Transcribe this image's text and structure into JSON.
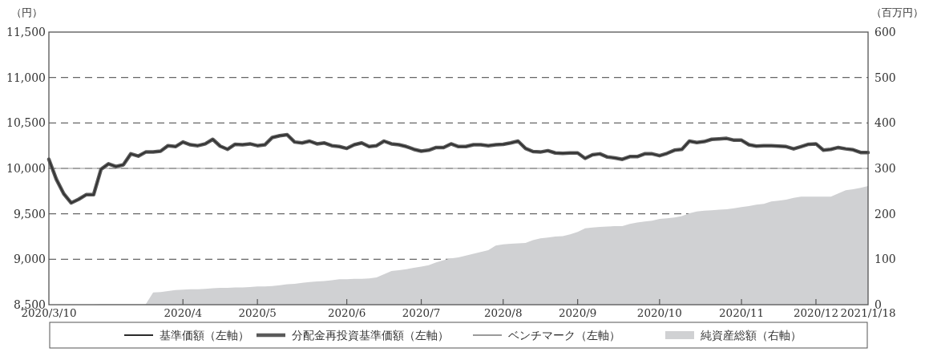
{
  "chart_data": {
    "type": "line",
    "ylabel": "（円）",
    "y2label": "（百万円）",
    "categories": [
      "2020/3/10",
      null,
      null,
      null,
      null,
      null,
      null,
      null,
      null,
      null,
      null,
      null,
      null,
      null,
      null,
      null,
      null,
      null,
      "2020/4",
      null,
      null,
      null,
      null,
      null,
      null,
      null,
      null,
      null,
      "2020/5",
      null,
      null,
      null,
      null,
      null,
      null,
      null,
      null,
      null,
      null,
      null,
      "2020/6",
      null,
      null,
      null,
      null,
      null,
      null,
      null,
      null,
      null,
      "2020/7",
      null,
      null,
      null,
      null,
      null,
      null,
      null,
      null,
      null,
      null,
      "2020/8",
      null,
      null,
      null,
      null,
      null,
      null,
      null,
      null,
      null,
      "2020/9",
      null,
      null,
      null,
      null,
      null,
      null,
      null,
      null,
      null,
      null,
      "2020/10",
      null,
      null,
      null,
      null,
      null,
      null,
      null,
      null,
      null,
      null,
      "2020/11",
      null,
      null,
      null,
      null,
      null,
      null,
      null,
      null,
      null,
      "2020/12",
      null,
      null,
      null,
      null,
      null,
      null,
      "2021/1/18"
    ],
    "series": [
      {
        "name": "純資産総額（右軸）",
        "type": "area",
        "axis": "y2",
        "color": "#d0d1d3",
        "values": [
          0,
          0,
          0,
          0,
          0,
          0,
          0,
          1,
          1,
          1,
          1,
          1,
          1,
          1,
          27,
          28,
          30,
          32,
          33,
          34,
          34,
          35,
          36,
          37,
          37,
          38,
          38,
          39,
          40,
          40,
          41,
          43,
          45,
          46,
          48,
          50,
          51,
          52,
          54,
          56,
          56,
          57,
          57,
          58,
          60,
          67,
          74,
          76,
          78,
          81,
          84,
          87,
          93,
          98,
          102,
          104,
          108,
          112,
          116,
          120,
          130,
          133,
          134,
          135,
          136,
          142,
          146,
          148,
          150,
          151,
          155,
          160,
          168,
          170,
          171,
          172,
          173,
          173,
          178,
          181,
          183,
          185,
          189,
          190,
          192,
          195,
          201,
          205,
          207,
          208,
          209,
          210,
          212,
          215,
          217,
          220,
          222,
          227,
          229,
          231,
          235,
          238,
          238,
          238,
          238,
          238,
          245,
          252,
          254,
          257,
          261
        ]
      },
      {
        "name": "ベンチマーク（左軸）",
        "color": "#9a9a9a",
        "values": [
          10000,
          10000,
          10000,
          10000,
          10000,
          10000,
          10000,
          10000,
          10000,
          10000,
          10000,
          10000,
          10000,
          10000,
          10000,
          10000,
          10000,
          10000,
          10000,
          10000,
          10000,
          10000,
          10000,
          10000,
          10000,
          10000,
          10000,
          10000,
          10000,
          10000,
          10000,
          10000,
          10000,
          10000,
          10000,
          10000,
          10000,
          10000,
          10000,
          10000,
          10000,
          10000,
          10000,
          10000,
          10000,
          10000,
          10000,
          10000,
          10000,
          10000,
          10000,
          10000,
          10000,
          10000,
          10000,
          10000,
          10000,
          10000,
          10000,
          10000,
          10000,
          10000,
          10000,
          10000,
          10000,
          10000,
          10000,
          10000,
          10000,
          10000,
          10000,
          10000,
          10000,
          10000,
          10000,
          10000,
          10000,
          10000,
          10000,
          10000,
          10000,
          10000,
          10000,
          10000,
          10000,
          10000,
          10000,
          10000,
          10000,
          10000,
          10000,
          10000,
          10000,
          10000,
          10000,
          10000,
          10000,
          10000,
          10000,
          10000,
          10000,
          10000,
          10000,
          10000,
          10000,
          10000,
          10000,
          10000,
          10000,
          10000,
          10000
        ]
      },
      {
        "name": "分配金再投資基準価額（左軸）",
        "color": "#5a5a5a",
        "values": [
          10100,
          9880,
          9720,
          9620,
          9660,
          9710,
          9710,
          9990,
          10050,
          10020,
          10040,
          10160,
          10135,
          10180,
          10180,
          10190,
          10250,
          10240,
          10290,
          10260,
          10250,
          10270,
          10320,
          10245,
          10210,
          10265,
          10260,
          10270,
          10250,
          10260,
          10340,
          10360,
          10370,
          10290,
          10280,
          10300,
          10270,
          10280,
          10250,
          10240,
          10220,
          10260,
          10280,
          10240,
          10250,
          10300,
          10270,
          10260,
          10240,
          10210,
          10190,
          10200,
          10230,
          10230,
          10270,
          10240,
          10240,
          10260,
          10260,
          10250,
          10260,
          10265,
          10280,
          10300,
          10220,
          10185,
          10180,
          10195,
          10170,
          10165,
          10170,
          10170,
          10110,
          10150,
          10160,
          10125,
          10115,
          10100,
          10130,
          10130,
          10160,
          10160,
          10140,
          10165,
          10200,
          10210,
          10300,
          10285,
          10295,
          10320,
          10325,
          10330,
          10310,
          10310,
          10260,
          10245,
          10250,
          10250,
          10245,
          10240,
          10215,
          10240,
          10265,
          10270,
          10200,
          10210,
          10230,
          10215,
          10205,
          10175,
          10175
        ]
      },
      {
        "name": "基準価額（左軸）",
        "color": "#2b2b2b",
        "values": [
          10100,
          9880,
          9720,
          9620,
          9660,
          9710,
          9710,
          9990,
          10050,
          10020,
          10040,
          10160,
          10135,
          10180,
          10180,
          10190,
          10250,
          10240,
          10290,
          10260,
          10250,
          10270,
          10320,
          10245,
          10210,
          10265,
          10260,
          10270,
          10250,
          10260,
          10340,
          10360,
          10370,
          10290,
          10280,
          10300,
          10270,
          10280,
          10250,
          10240,
          10220,
          10260,
          10280,
          10240,
          10250,
          10300,
          10270,
          10260,
          10240,
          10210,
          10190,
          10200,
          10230,
          10230,
          10270,
          10240,
          10240,
          10260,
          10260,
          10250,
          10260,
          10265,
          10280,
          10300,
          10220,
          10185,
          10180,
          10195,
          10170,
          10165,
          10170,
          10170,
          10110,
          10150,
          10160,
          10125,
          10115,
          10100,
          10130,
          10130,
          10160,
          10160,
          10140,
          10165,
          10200,
          10210,
          10300,
          10285,
          10295,
          10320,
          10325,
          10330,
          10310,
          10310,
          10260,
          10245,
          10250,
          10250,
          10245,
          10240,
          10215,
          10240,
          10265,
          10270,
          10200,
          10210,
          10230,
          10215,
          10205,
          10175,
          10175
        ]
      }
    ],
    "ylim": [
      8500,
      11500
    ],
    "yticks": [
      {
        "value": 8500,
        "label": "8,500"
      },
      {
        "value": 9000,
        "label": "9,000"
      },
      {
        "value": 9500,
        "label": "9,500"
      },
      {
        "value": 10000,
        "label": "10,000"
      },
      {
        "value": 10500,
        "label": "10,500"
      },
      {
        "value": 11000,
        "label": "11,000"
      },
      {
        "value": 11500,
        "label": "11,500"
      }
    ],
    "y2lim": [
      0,
      600
    ],
    "y2ticks": [
      0,
      100,
      200,
      300,
      400,
      500,
      600
    ],
    "grid": "y",
    "legend": "bottom"
  }
}
